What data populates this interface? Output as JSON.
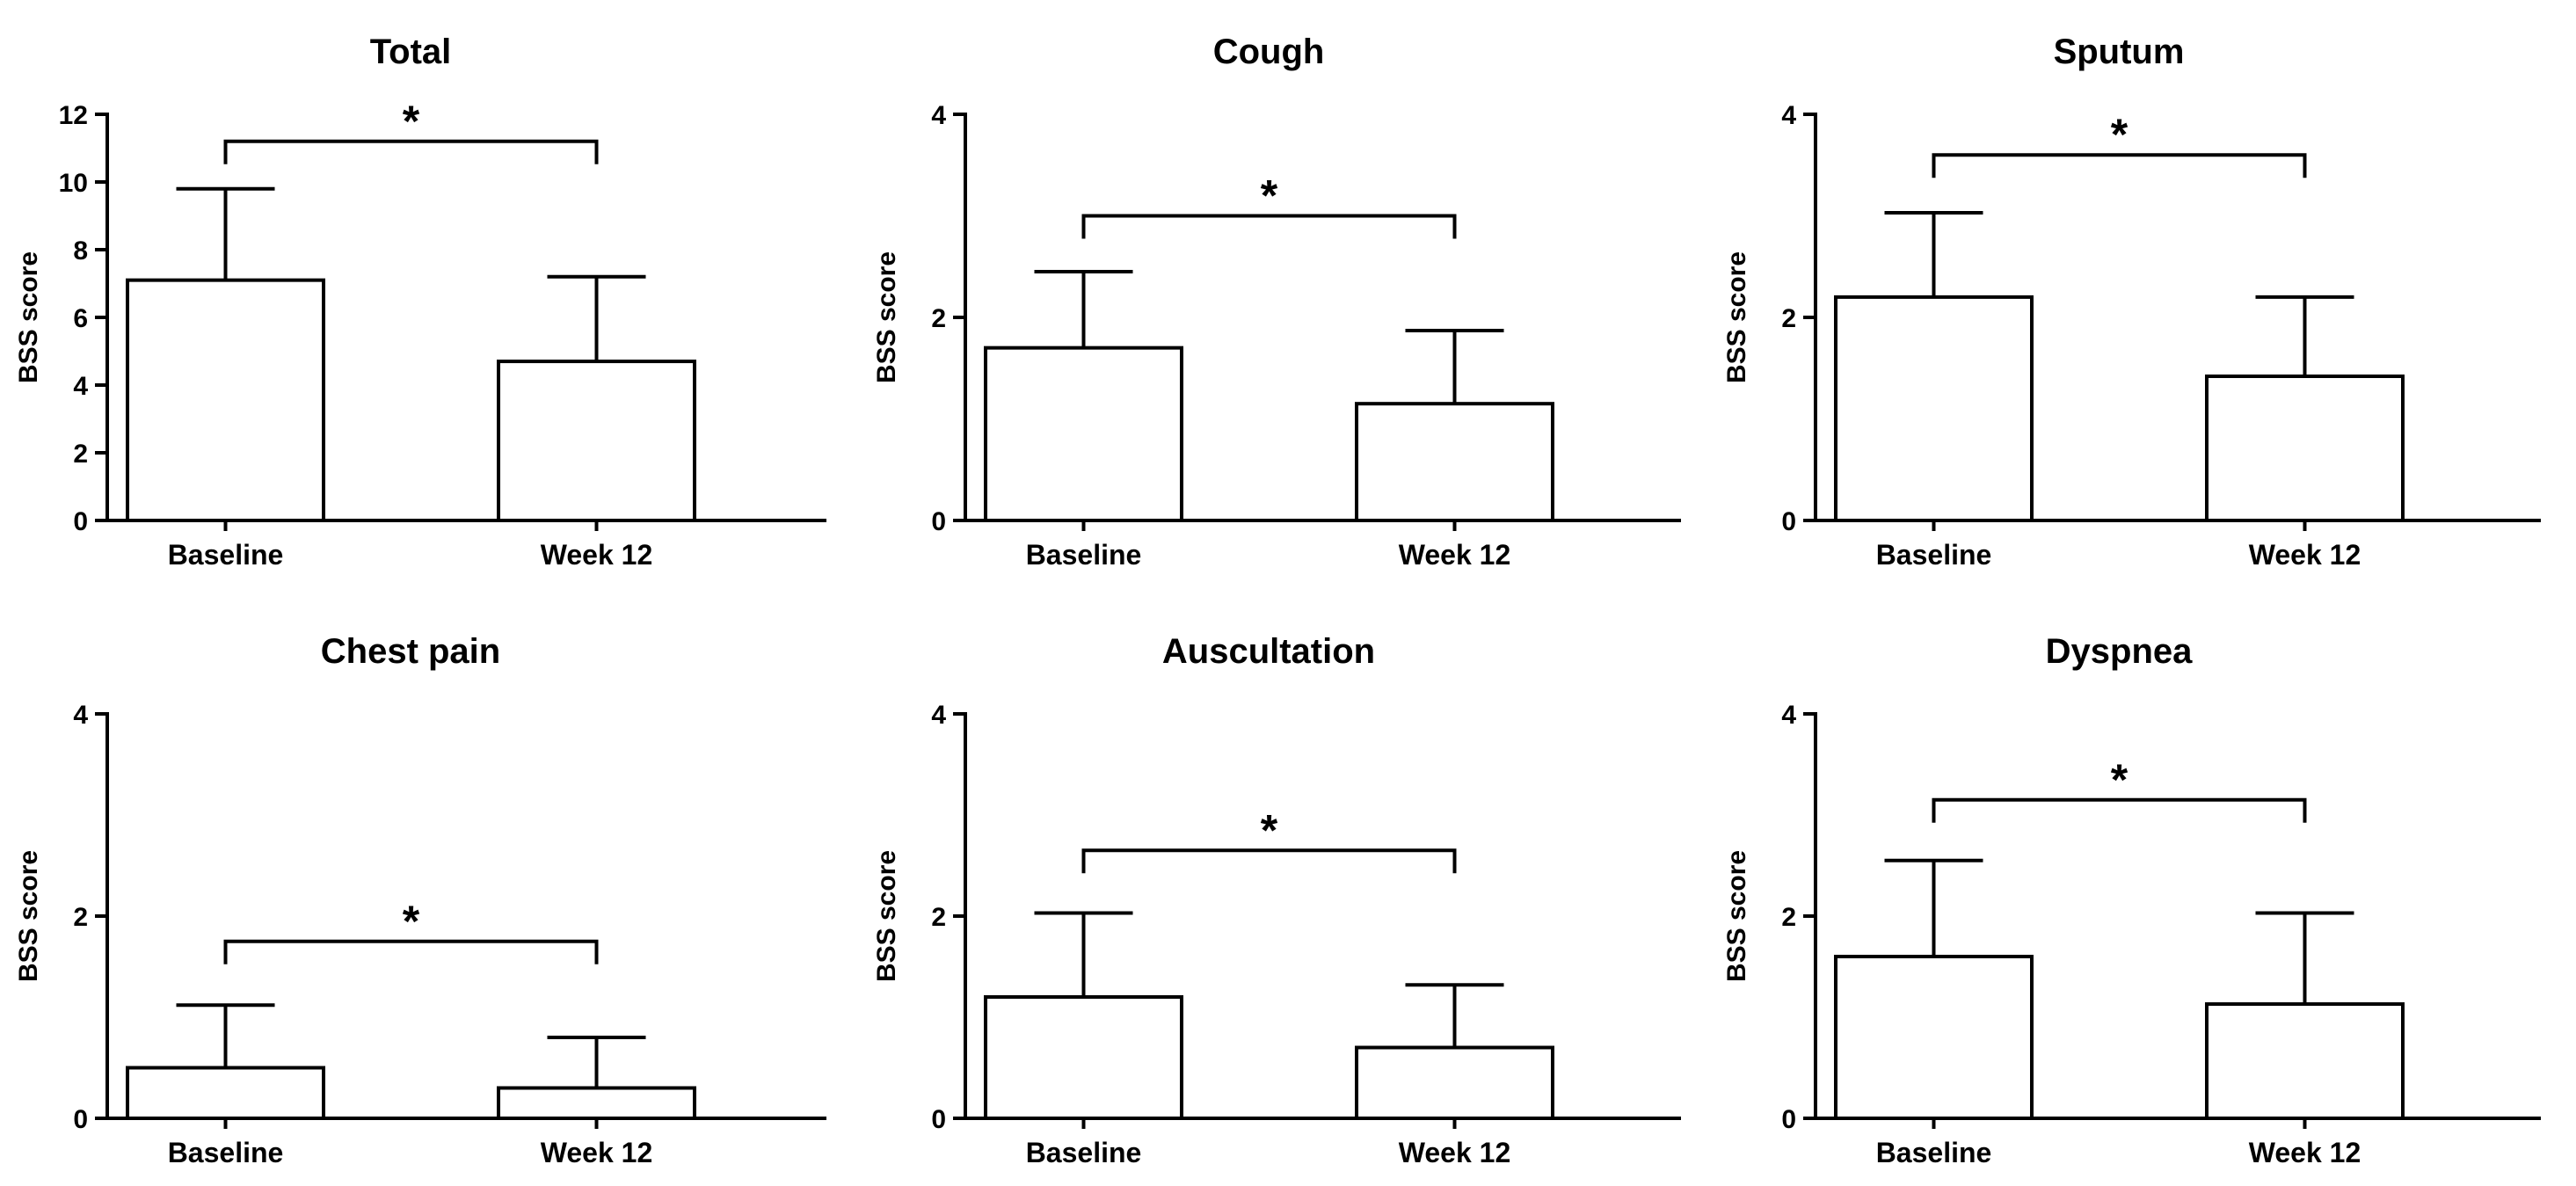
{
  "chart_data": [
    {
      "type": "bar",
      "title": "Total",
      "categories": [
        "Baseline",
        "Week 12"
      ],
      "values": [
        7.1,
        4.7
      ],
      "errors": [
        2.7,
        2.5
      ],
      "ylabel": "BSS score",
      "xlabel": "",
      "ylim": [
        0,
        12
      ],
      "yticks": [
        0,
        2,
        4,
        6,
        8,
        10,
        12
      ],
      "significance": "*",
      "sig_level": 11.2
    },
    {
      "type": "bar",
      "title": "Cough",
      "categories": [
        "Baseline",
        "Week 12"
      ],
      "values": [
        1.7,
        1.15
      ],
      "errors": [
        0.75,
        0.72
      ],
      "ylabel": "BSS score",
      "xlabel": "",
      "ylim": [
        0,
        4
      ],
      "yticks": [
        0,
        2,
        4
      ],
      "significance": "*",
      "sig_level": 3.0
    },
    {
      "type": "bar",
      "title": "Sputum",
      "categories": [
        "Baseline",
        "Week 12"
      ],
      "values": [
        2.2,
        1.42
      ],
      "errors": [
        0.83,
        0.78
      ],
      "ylabel": "BSS score",
      "xlabel": "",
      "ylim": [
        0,
        4
      ],
      "yticks": [
        0,
        2,
        4
      ],
      "significance": "*",
      "sig_level": 3.6
    },
    {
      "type": "bar",
      "title": "Chest pain",
      "categories": [
        "Baseline",
        "Week 12"
      ],
      "values": [
        0.5,
        0.3
      ],
      "errors": [
        0.62,
        0.5
      ],
      "ylabel": "BSS score",
      "xlabel": "",
      "ylim": [
        0,
        4
      ],
      "yticks": [
        0,
        2,
        4
      ],
      "significance": "*",
      "sig_level": 1.75
    },
    {
      "type": "bar",
      "title": "Auscultation",
      "categories": [
        "Baseline",
        "Week 12"
      ],
      "values": [
        1.2,
        0.7
      ],
      "errors": [
        0.83,
        0.62
      ],
      "ylabel": "BSS score",
      "xlabel": "",
      "ylim": [
        0,
        4
      ],
      "yticks": [
        0,
        2,
        4
      ],
      "significance": "*",
      "sig_level": 2.65
    },
    {
      "type": "bar",
      "title": "Dyspnea",
      "categories": [
        "Baseline",
        "Week 12"
      ],
      "values": [
        1.6,
        1.13
      ],
      "errors": [
        0.95,
        0.9
      ],
      "ylabel": "BSS score",
      "xlabel": "",
      "ylim": [
        0,
        4
      ],
      "yticks": [
        0,
        2,
        4
      ],
      "significance": "*",
      "sig_level": 3.15
    }
  ]
}
